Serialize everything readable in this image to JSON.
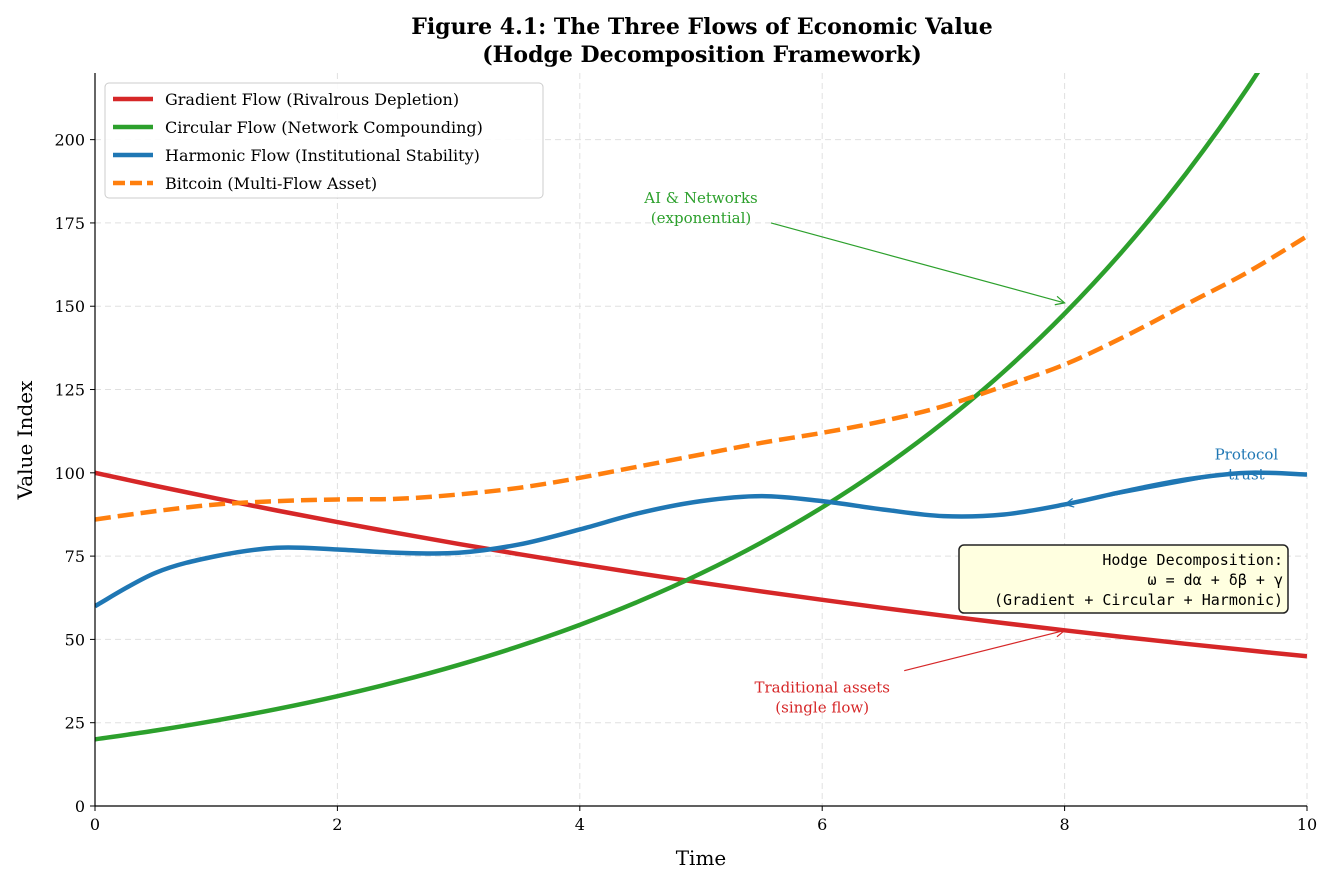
{
  "chart_data": {
    "type": "line",
    "title": "Figure 4.1: The Three Flows of Economic Value",
    "subtitle": "(Hodge Decomposition Framework)",
    "xlabel": "Time",
    "ylabel": "Value Index",
    "xlim": [
      0,
      10
    ],
    "ylim": [
      0,
      220
    ],
    "xticks": [
      0,
      2,
      4,
      6,
      8,
      10
    ],
    "yticks": [
      0,
      25,
      50,
      75,
      100,
      125,
      150,
      175,
      200
    ],
    "grid": true,
    "grid_style": "dashed",
    "legend_position": "top-left",
    "x": [
      0,
      0.5,
      1,
      1.5,
      2,
      2.5,
      3,
      3.5,
      4,
      4.5,
      5,
      5.5,
      6,
      6.5,
      7,
      7.5,
      8,
      8.5,
      9,
      9.5,
      10
    ],
    "series": [
      {
        "name": "Gradient Flow (Rivalrous Depletion)",
        "color": "#d62728",
        "style": "solid",
        "values": [
          100,
          96.08,
          92.31,
          88.69,
          85.21,
          81.87,
          78.66,
          75.58,
          72.61,
          69.77,
          67.03,
          64.4,
          61.88,
          59.45,
          57.12,
          54.88,
          52.73,
          50.66,
          48.68,
          46.77,
          44.93
        ]
      },
      {
        "name": "Circular Flow (Network Compounding)",
        "color": "#2ca02c",
        "style": "solid",
        "values": [
          20,
          22.66,
          25.68,
          29.1,
          32.97,
          37.37,
          42.34,
          47.98,
          54.37,
          61.61,
          69.81,
          79.11,
          89.63,
          101.57,
          115.09,
          130.41,
          147.78,
          167.45,
          189.74,
          215.0,
          243.6
        ]
      },
      {
        "name": "Harmonic Flow (Institutional Stability)",
        "color": "#1f77b4",
        "style": "solid",
        "values": [
          60,
          70,
          75,
          77.5,
          77,
          76,
          76,
          78.5,
          83,
          88,
          91.5,
          93,
          91.5,
          89,
          87,
          87.5,
          90.5,
          94.5,
          98,
          100,
          99.5
        ]
      },
      {
        "name": "Bitcoin (Multi-Flow Asset)",
        "color": "#ff7f0e",
        "style": "dashed",
        "values": [
          86,
          88.5,
          90.5,
          91.5,
          92,
          92.2,
          93.5,
          95.5,
          98.5,
          102,
          105.5,
          109,
          112,
          115.5,
          120,
          126,
          132.5,
          141,
          150.5,
          160,
          171
        ]
      }
    ],
    "annotations": [
      {
        "text": [
          "AI & Networks",
          "(exponential)"
        ],
        "color": "#2ca02c",
        "text_at": [
          5.0,
          181
        ],
        "arrow_to": [
          8,
          151
        ]
      },
      {
        "text": [
          "Protocol",
          "trust"
        ],
        "color": "#1f77b4",
        "text_at": [
          9.5,
          104
        ],
        "arrow_to": [
          8,
          90.5
        ]
      },
      {
        "text": [
          "Traditional assets",
          "(single flow)"
        ],
        "color": "#d62728",
        "text_at": [
          6.0,
          34
        ],
        "arrow_to": [
          8,
          52.7
        ]
      }
    ],
    "textbox": {
      "lines": [
        "Hodge Decomposition:",
        "ω = dα + δβ + γ",
        "(Gradient + Circular + Harmonic)"
      ],
      "background": "#ffffe0"
    }
  }
}
